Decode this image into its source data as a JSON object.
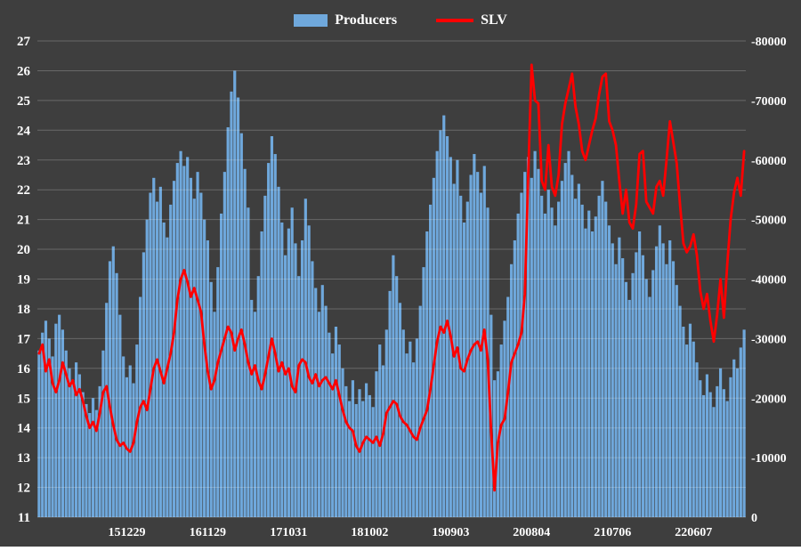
{
  "background": "#3E3E3E",
  "text_color": "#FFFFFF",
  "chart_data": {
    "type": "combo_bar_line",
    "title": "",
    "legend_position": "top",
    "grid": true,
    "grid_color": "rgba(255,255,255,0.22)",
    "x": {
      "count": 210,
      "tick_labels": [
        "151229",
        "161129",
        "171031",
        "181002",
        "190903",
        "200804",
        "210706",
        "220607"
      ],
      "tick_indices": [
        26,
        50,
        74,
        98,
        122,
        146,
        170,
        194
      ]
    },
    "left_axis": {
      "series": "SLV",
      "min": 11,
      "max": 27,
      "ticks": [
        27,
        26,
        25,
        24,
        23,
        22,
        21,
        20,
        19,
        18,
        17,
        16,
        15,
        14,
        13,
        12,
        11
      ]
    },
    "right_axis": {
      "series": "Producers",
      "min": 0,
      "max": 80000,
      "labels_top_to_bottom": [
        "-80000",
        "-70000",
        "-60000",
        "-50000",
        "-40000",
        "-30000",
        "-20000",
        "-10000",
        "0"
      ]
    },
    "series": [
      {
        "name": "Producers",
        "type": "bar",
        "axis": "right",
        "color": "#6FA8DC",
        "values": [
          -28000,
          -31000,
          -33000,
          -30000,
          -27000,
          -32500,
          -34000,
          -31500,
          -28000,
          -25000,
          -23000,
          -26000,
          -24000,
          -21000,
          -19000,
          -17500,
          -20000,
          -18000,
          -22000,
          -28000,
          -36000,
          -43000,
          -45500,
          -41000,
          -34000,
          -27000,
          -23500,
          -25500,
          -22500,
          -29000,
          -37000,
          -44500,
          -50000,
          -54500,
          -57000,
          -53000,
          -55500,
          -49500,
          -47000,
          -52500,
          -56500,
          -59500,
          -61500,
          -59000,
          -60500,
          -57000,
          -53500,
          -58000,
          -54500,
          -50000,
          -46500,
          -39500,
          -34500,
          -42000,
          -51000,
          -58000,
          -65500,
          -71500,
          -75000,
          -70500,
          -64500,
          -58500,
          -52000,
          -36500,
          -34500,
          -40500,
          -48000,
          -54000,
          -59500,
          -64000,
          -61000,
          -55500,
          -49500,
          -44000,
          -48500,
          -52000,
          -46000,
          -40500,
          -46500,
          -53500,
          -49000,
          -43000,
          -38500,
          -34500,
          -39000,
          -35500,
          -31000,
          -27500,
          -32000,
          -29000,
          -25000,
          -22000,
          -19500,
          -23000,
          -19000,
          -21500,
          -19500,
          -22500,
          -20500,
          -18500,
          -24500,
          -29000,
          -25500,
          -31500,
          -38000,
          -44000,
          -40500,
          -36000,
          -31500,
          -27500,
          -29500,
          -26000,
          -30000,
          -35500,
          -42000,
          -48000,
          -52500,
          -57000,
          -61500,
          -65000,
          -67500,
          -64000,
          -60500,
          -56000,
          -60000,
          -54000,
          -49500,
          -53000,
          -57500,
          -61000,
          -58000,
          -54500,
          -59000,
          -52000,
          -34000,
          -23000,
          -24500,
          -29000,
          -33000,
          -37000,
          -42500,
          -46500,
          -51000,
          -54500,
          -58000,
          -60500,
          -57000,
          -61500,
          -58500,
          -54000,
          -51000,
          -55000,
          -52000,
          -49000,
          -53000,
          -56500,
          -59500,
          -61500,
          -57500,
          -53500,
          -56000,
          -52500,
          -48500,
          -51500,
          -48000,
          -50500,
          -54000,
          -56500,
          -53000,
          -49000,
          -46000,
          -42500,
          -47000,
          -43500,
          -39500,
          -36500,
          -41000,
          -44500,
          -48000,
          -44000,
          -40000,
          -37000,
          -41500,
          -45500,
          -49000,
          -46000,
          -42500,
          -46500,
          -43000,
          -39000,
          -35500,
          -32000,
          -29000,
          -32500,
          -29500,
          -26000,
          -23000,
          -20500,
          -24000,
          -21000,
          -18500,
          -22000,
          -25000,
          -21500,
          -19500,
          -23500,
          -26500,
          -25000,
          -28500,
          -31500
        ]
      },
      {
        "name": "SLV",
        "type": "line",
        "axis": "left",
        "color": "#FF0000",
        "values": [
          16.5,
          16.8,
          15.9,
          16.3,
          15.5,
          15.2,
          15.6,
          16.2,
          15.8,
          15.4,
          15.6,
          15.1,
          15.3,
          14.9,
          14.4,
          14.0,
          14.2,
          13.9,
          14.5,
          15.2,
          15.4,
          14.7,
          14.1,
          13.6,
          13.4,
          13.5,
          13.3,
          13.2,
          13.5,
          14.2,
          14.7,
          14.9,
          14.6,
          15.3,
          16.0,
          16.3,
          15.9,
          15.5,
          16.0,
          16.5,
          17.2,
          18.3,
          19.0,
          19.3,
          18.9,
          18.4,
          18.7,
          18.3,
          17.9,
          16.8,
          15.9,
          15.3,
          15.6,
          16.2,
          16.6,
          17.0,
          17.4,
          17.2,
          16.6,
          17.0,
          17.3,
          16.8,
          16.2,
          15.8,
          16.1,
          15.6,
          15.3,
          15.8,
          16.4,
          17.0,
          16.5,
          15.9,
          16.2,
          15.8,
          16.0,
          15.4,
          15.2,
          16.1,
          16.3,
          16.2,
          15.7,
          15.5,
          15.8,
          15.4,
          15.6,
          15.7,
          15.5,
          15.3,
          15.6,
          15.1,
          14.6,
          14.2,
          14.0,
          13.9,
          13.4,
          13.2,
          13.5,
          13.7,
          13.6,
          13.5,
          13.7,
          13.4,
          13.8,
          14.5,
          14.7,
          14.9,
          14.8,
          14.4,
          14.2,
          14.1,
          13.9,
          13.7,
          13.6,
          14.0,
          14.3,
          14.6,
          15.3,
          16.1,
          16.9,
          17.4,
          17.2,
          17.6,
          17.1,
          16.4,
          16.7,
          16.0,
          15.9,
          16.3,
          16.6,
          16.8,
          16.9,
          16.6,
          17.3,
          16.3,
          13.9,
          11.9,
          13.5,
          14.1,
          14.3,
          15.2,
          16.2,
          16.5,
          16.8,
          17.2,
          18.5,
          22.5,
          26.2,
          25.0,
          24.9,
          22.3,
          22.0,
          23.5,
          22.1,
          21.8,
          22.5,
          24.2,
          24.9,
          25.4,
          25.9,
          24.8,
          24.2,
          23.3,
          23.0,
          23.5,
          24.0,
          24.4,
          25.2,
          25.8,
          25.9,
          24.3,
          24.0,
          23.5,
          22.3,
          21.2,
          22.0,
          20.9,
          20.7,
          21.5,
          23.2,
          23.3,
          21.6,
          21.4,
          21.2,
          22.1,
          22.3,
          21.8,
          23.0,
          24.3,
          23.6,
          22.9,
          21.5,
          20.2,
          19.9,
          20.1,
          20.5,
          19.8,
          18.6,
          18.0,
          18.5,
          17.6,
          16.9,
          17.8,
          19.0,
          17.7,
          19.5,
          21.0,
          21.9,
          22.4,
          21.8,
          23.3
        ]
      }
    ]
  }
}
